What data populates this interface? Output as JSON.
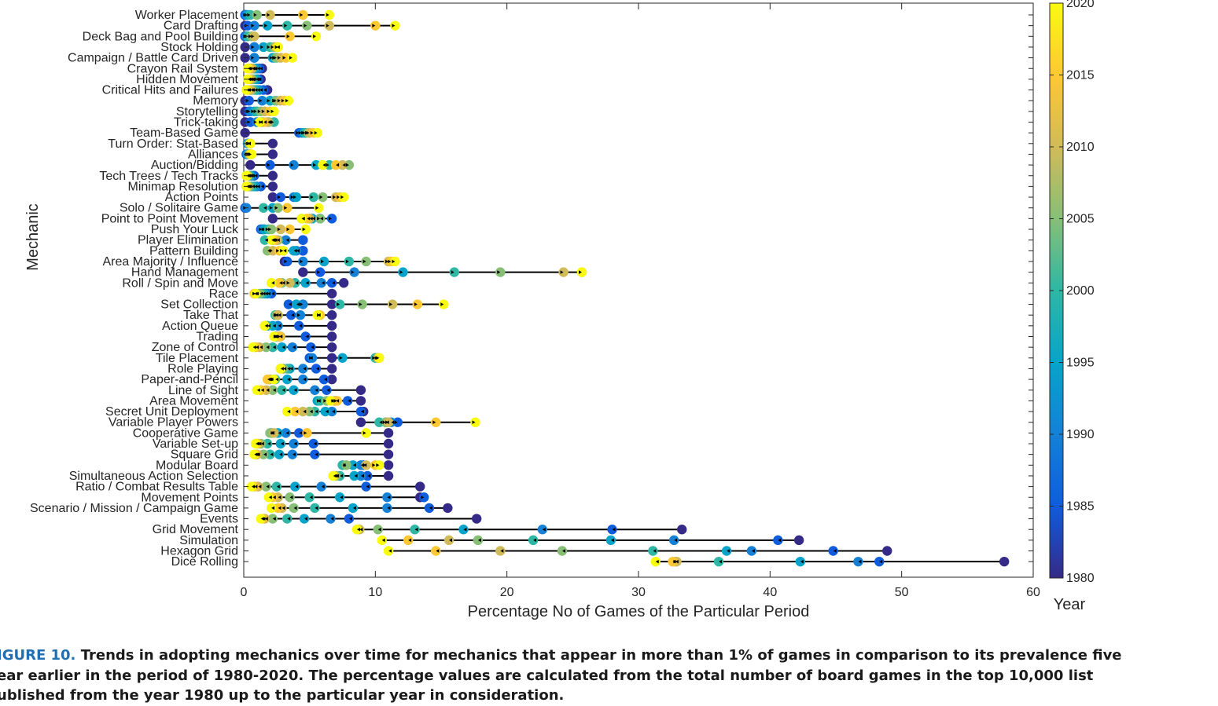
{
  "chart_data": {
    "type": "scatter",
    "xlabel": "Percentage No of Games of the Particular Period",
    "ylabel": "Mechanic",
    "xlim": [
      0,
      60
    ],
    "xticks": [
      0,
      10,
      20,
      30,
      40,
      50,
      60
    ],
    "colorbar": {
      "label": "Year",
      "range": [
        1980,
        2020
      ],
      "ticks": [
        1980,
        1985,
        1990,
        1995,
        2000,
        2005,
        2010,
        2015,
        2020
      ]
    },
    "years": [
      1980,
      1985,
      1990,
      1995,
      2000,
      2005,
      2010,
      2015,
      2020
    ],
    "grid": false,
    "categories": [
      {
        "name": "Worker Placement",
        "values": [
          0.1,
          0.1,
          0.2,
          0.3,
          0.5,
          1.0,
          2.0,
          4.5,
          6.5
        ]
      },
      {
        "name": "Card Drafting",
        "values": [
          0.1,
          0.3,
          0.8,
          1.8,
          3.3,
          4.8,
          6.5,
          10.0,
          11.5
        ]
      },
      {
        "name": "Deck Bag and Pool Building",
        "values": [
          0.1,
          0.1,
          0.2,
          0.3,
          0.3,
          0.6,
          0.8,
          3.5,
          5.5
        ]
      },
      {
        "name": "Stock Holding",
        "values": [
          0.1,
          0.8,
          0.8,
          1.5,
          2.0,
          2.3,
          2.6,
          2.5,
          2.6
        ]
      },
      {
        "name": "Campaign / Battle Card Driven",
        "values": [
          0.1,
          0.8,
          0.8,
          2.2,
          2.4,
          2.5,
          2.8,
          3.2,
          3.7
        ]
      },
      {
        "name": "Crayon Rail System",
        "values": [
          1.4,
          1.2,
          1.0,
          0.8,
          0.7,
          0.6,
          0.6,
          0.4,
          0.3
        ]
      },
      {
        "name": "Hidden Movement",
        "values": [
          1.3,
          1.1,
          1.0,
          0.9,
          0.7,
          0.6,
          0.5,
          0.4,
          0.3
        ]
      },
      {
        "name": "Critical Hits and Failures",
        "values": [
          1.8,
          1.5,
          1.2,
          1.0,
          0.8,
          0.6,
          0.5,
          0.3,
          0.2
        ]
      },
      {
        "name": "Memory",
        "values": [
          0.1,
          0.4,
          1.4,
          2.0,
          2.4,
          2.5,
          2.8,
          3.1,
          3.4
        ]
      },
      {
        "name": "Storytelling",
        "values": [
          0.1,
          0.4,
          0.5,
          0.8,
          1.0,
          1.3,
          1.6,
          2.0,
          2.3
        ]
      },
      {
        "name": "Trick-taking",
        "values": [
          0.1,
          0.5,
          1.0,
          1.4,
          2.3,
          1.9,
          1.8,
          1.5,
          1.2
        ]
      },
      {
        "name": "Team-Based Game",
        "values": [
          0.1,
          4.2,
          4.4,
          4.6,
          4.7,
          4.9,
          5.0,
          5.3,
          5.6
        ]
      },
      {
        "name": "Turn Order: Stat-Based",
        "values": [
          2.2,
          0.3,
          0.3,
          0.4,
          0.4,
          0.4,
          0.5,
          0.5,
          0.5
        ]
      },
      {
        "name": "Alliances",
        "values": [
          2.2,
          0.2,
          0.3,
          0.3,
          0.4,
          0.4,
          0.5,
          0.5,
          0.6
        ]
      },
      {
        "name": "Auction/Bidding",
        "values": [
          0.5,
          2.0,
          3.8,
          5.5,
          6.5,
          8.0,
          7.5,
          7.0,
          6.0
        ]
      },
      {
        "name": "Tech Trees / Tech Tracks",
        "values": [
          2.2,
          0.8,
          0.6,
          0.5,
          0.4,
          0.3,
          0.3,
          0.2,
          0.2
        ]
      },
      {
        "name": "Minimap Resolution",
        "values": [
          2.2,
          1.3,
          1.0,
          0.8,
          0.6,
          0.4,
          0.3,
          0.2,
          0.2
        ]
      },
      {
        "name": "Action Points",
        "values": [
          2.2,
          2.8,
          3.8,
          4.0,
          5.3,
          6.0,
          7.0,
          7.3,
          7.6
        ]
      },
      {
        "name": "Solo / Solitaire Game",
        "values": [
          0.1,
          0.1,
          0.2,
          2.2,
          1.5,
          2.6,
          3.3,
          3.3,
          5.7
        ]
      },
      {
        "name": "Point to Point Movement",
        "values": [
          2.2,
          6.7,
          5.8,
          5.2,
          4.4,
          5.8,
          5.0,
          4.8,
          4.4
        ]
      },
      {
        "name": "Push Your Luck",
        "values": [
          1.5,
          1.3,
          1.4,
          1.6,
          1.9,
          2.1,
          2.8,
          3.5,
          4.7
        ]
      },
      {
        "name": "Player Elimination",
        "values": [
          4.5,
          4.5,
          3.2,
          2.2,
          1.6,
          2.6,
          2.5,
          2.3,
          2.1
        ]
      },
      {
        "name": "Pattern Building",
        "values": [
          4.5,
          4.5,
          4.0,
          3.8,
          3.0,
          1.8,
          2.2,
          2.7,
          3.0
        ]
      },
      {
        "name": "Area Majority / Influence",
        "values": [
          3.1,
          3.3,
          4.5,
          6.1,
          8.0,
          9.3,
          11.0,
          11.2,
          11.5
        ]
      },
      {
        "name": "Hand Management",
        "values": [
          4.5,
          5.8,
          8.4,
          12.1,
          16.0,
          19.5,
          24.3,
          25.7,
          25.7
        ]
      },
      {
        "name": "Roll / Spin and Move",
        "values": [
          7.6,
          6.7,
          5.9,
          4.7,
          3.9,
          2.9,
          3.5,
          2.7,
          2.1
        ]
      },
      {
        "name": "Race",
        "values": [
          6.7,
          2.1,
          1.8,
          1.6,
          1.4,
          1.2,
          0.9,
          0.8,
          0.9
        ]
      },
      {
        "name": "Set Collection",
        "values": [
          6.7,
          3.4,
          4.5,
          4.0,
          7.3,
          9.0,
          11.3,
          13.2,
          15.2
        ]
      },
      {
        "name": "Take That",
        "values": [
          6.7,
          3.6,
          4.3,
          2.6,
          2.4,
          2.5,
          2.6,
          5.8,
          5.6
        ]
      },
      {
        "name": "Action Queue",
        "values": [
          6.7,
          4.2,
          2.6,
          2.2,
          1.8,
          1.6,
          1.6,
          1.6,
          1.6
        ]
      },
      {
        "name": "Trading",
        "values": [
          6.7,
          4.7,
          2.7,
          2.4,
          2.5,
          2.6,
          2.8,
          2.7,
          2.3
        ]
      },
      {
        "name": "Zone of Control",
        "values": [
          6.7,
          5.1,
          3.7,
          2.9,
          2.2,
          1.7,
          1.2,
          0.9,
          0.7
        ]
      },
      {
        "name": "Tile Placement",
        "values": [
          6.7,
          5.0,
          5.2,
          7.5,
          10.0,
          10.2,
          10.2,
          10.3,
          10.3
        ]
      },
      {
        "name": "Role Playing",
        "values": [
          6.7,
          5.5,
          4.5,
          3.5,
          3.3,
          3.0,
          2.8,
          2.8,
          2.8
        ]
      },
      {
        "name": "Paper-and-Pencil",
        "values": [
          6.7,
          6.1,
          4.5,
          3.3,
          2.4,
          2.0,
          1.9,
          1.8,
          2.3
        ]
      },
      {
        "name": "Line of Sight",
        "values": [
          8.9,
          6.3,
          5.4,
          3.8,
          2.9,
          2.2,
          1.7,
          1.3,
          1.0
        ]
      },
      {
        "name": "Area Movement",
        "values": [
          8.9,
          7.9,
          7.0,
          5.6,
          5.8,
          6.3,
          6.9,
          7.1,
          6.6
        ]
      },
      {
        "name": "Secret Unit Deployment",
        "values": [
          9.1,
          8.9,
          6.7,
          6.2,
          5.4,
          5.0,
          4.5,
          3.9,
          3.3
        ]
      },
      {
        "name": "Variable Player Powers",
        "values": [
          8.9,
          11.7,
          11.2,
          10.8,
          10.3,
          10.8,
          11.0,
          14.6,
          17.6
        ]
      },
      {
        "name": "Cooperative Game",
        "values": [
          11.0,
          4.2,
          3.2,
          2.6,
          2.1,
          2.0,
          2.3,
          4.8,
          9.3
        ]
      },
      {
        "name": "Variable Set-up",
        "values": [
          11.0,
          5.3,
          3.8,
          2.8,
          1.8,
          1.3,
          1.1,
          1.0,
          0.9
        ]
      },
      {
        "name": "Square Grid",
        "values": [
          11.0,
          5.4,
          3.7,
          2.7,
          2.0,
          1.5,
          1.0,
          0.9,
          0.8
        ]
      },
      {
        "name": "Modular Board",
        "values": [
          11.0,
          9.1,
          8.9,
          8.3,
          7.5,
          7.8,
          9.3,
          10.0,
          10.3
        ]
      },
      {
        "name": "Simultaneous Action Selection",
        "values": [
          11.0,
          9.4,
          8.9,
          8.4,
          7.3,
          7.0,
          6.9,
          6.8,
          6.8
        ]
      },
      {
        "name": "Ratio / Combat Results Table",
        "values": [
          13.4,
          9.3,
          5.9,
          3.9,
          2.5,
          1.7,
          1.1,
          0.8,
          0.6
        ]
      },
      {
        "name": "Movement Points",
        "values": [
          13.4,
          13.7,
          10.9,
          7.3,
          5.0,
          3.5,
          2.6,
          2.2,
          1.9
        ]
      },
      {
        "name": "Scenario / Mission / Campaign Game",
        "values": [
          15.5,
          14.1,
          10.9,
          8.3,
          5.4,
          3.8,
          2.9,
          2.6,
          2.1
        ]
      },
      {
        "name": "Events",
        "values": [
          17.7,
          8.0,
          6.6,
          4.6,
          3.3,
          2.2,
          1.6,
          1.4,
          1.3
        ]
      },
      {
        "name": "Grid Movement",
        "values": [
          33.3,
          28.0,
          22.7,
          16.7,
          13.0,
          10.2,
          8.8,
          8.6,
          8.6
        ]
      },
      {
        "name": "Simulation",
        "values": [
          42.2,
          40.6,
          32.7,
          27.9,
          22.0,
          17.8,
          15.6,
          12.5,
          10.5
        ]
      },
      {
        "name": "Hexagon Grid",
        "values": [
          48.9,
          44.8,
          38.6,
          36.7,
          31.1,
          24.2,
          19.5,
          14.6,
          11.0
        ]
      },
      {
        "name": "Dice Rolling",
        "values": [
          57.8,
          48.3,
          46.7,
          42.3,
          36.1,
          32.8,
          32.9,
          32.6,
          31.3
        ]
      }
    ]
  },
  "caption": {
    "figure_number": "IGURE 10.",
    "lines": [
      "Trends in adopting mechanics over time for mechanics that appear in more than 1% of games in comparison to its prevalence five",
      "ear earlier in the period of 1980-2020. The percentage values are calculated from the total number of board games in the top 10,000 list",
      "ublished from the year 1980 up to the particular year in consideration."
    ]
  }
}
